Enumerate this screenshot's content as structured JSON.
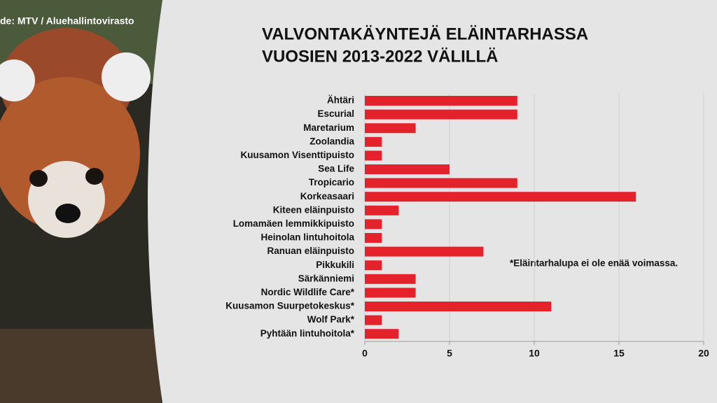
{
  "chart_data": {
    "type": "bar",
    "orientation": "horizontal",
    "source": "de: MTV / Aluehallintovirasto",
    "title": [
      "VALVONTAKÄYNTEJÄ ELÄINTARHASSA",
      "VUOSIEN 2013-2022 VÄLILLÄ"
    ],
    "annotation": "*Eläintarhalupa ei ole enää voimassa.",
    "categories": [
      "Ähtäri",
      "Escurial",
      "Maretarium",
      "Zoolandia",
      "Kuusamon Visenttipuisto",
      "Sea Life",
      "Tropicario",
      "Korkeasaari",
      "Kiteen eläinpuisto",
      "Lomamäen lemmikkipuisto",
      "Heinolan lintuhoitola",
      "Ranuan eläinpuisto",
      "Pikkukili",
      "Särkänniemi",
      "Nordic Wildlife Care*",
      "Kuusamon Suurpetokeskus*",
      "Wolf Park*",
      "Pyhtään lintuhoitola*"
    ],
    "values": [
      9,
      9,
      3,
      1,
      1,
      5,
      9,
      16,
      2,
      1,
      1,
      7,
      1,
      3,
      3,
      11,
      1,
      2
    ],
    "color": "#e3222b",
    "xlim": [
      0,
      20
    ],
    "xticks": [
      0,
      5,
      10,
      15,
      20
    ],
    "grid": true
  }
}
